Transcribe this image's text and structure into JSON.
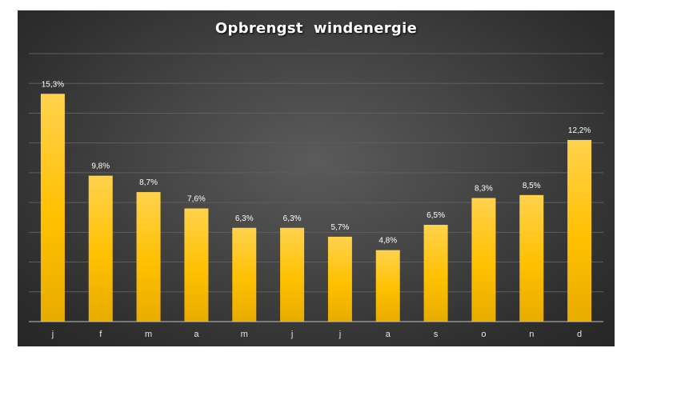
{
  "chart_data": {
    "type": "bar",
    "title": "Opbrengst  windenergie",
    "categories": [
      "j",
      "f",
      "m",
      "a",
      "m",
      "j",
      "j",
      "a",
      "s",
      "o",
      "n",
      "d"
    ],
    "values": [
      15.3,
      9.8,
      8.7,
      7.6,
      6.3,
      6.3,
      5.7,
      4.8,
      6.5,
      8.3,
      8.5,
      12.2
    ],
    "data_labels": [
      "15,3%",
      "9,8%",
      "8,7%",
      "7,6%",
      "6,3%",
      "6,3%",
      "5,7%",
      "4,8%",
      "6,5%",
      "8,3%",
      "8,5%",
      "12,2%"
    ],
    "unit": "%",
    "ylim": [
      0,
      18
    ],
    "grid": true,
    "legend": "none",
    "xlabel": "",
    "ylabel": "",
    "colors": {
      "bar_top": "#ffd24d",
      "bar_mid": "#ffc000",
      "bar_bottom": "#e8ac00",
      "gridline": "#5e5e5e",
      "axis": "#bfbfbf",
      "background": "#404040"
    }
  }
}
